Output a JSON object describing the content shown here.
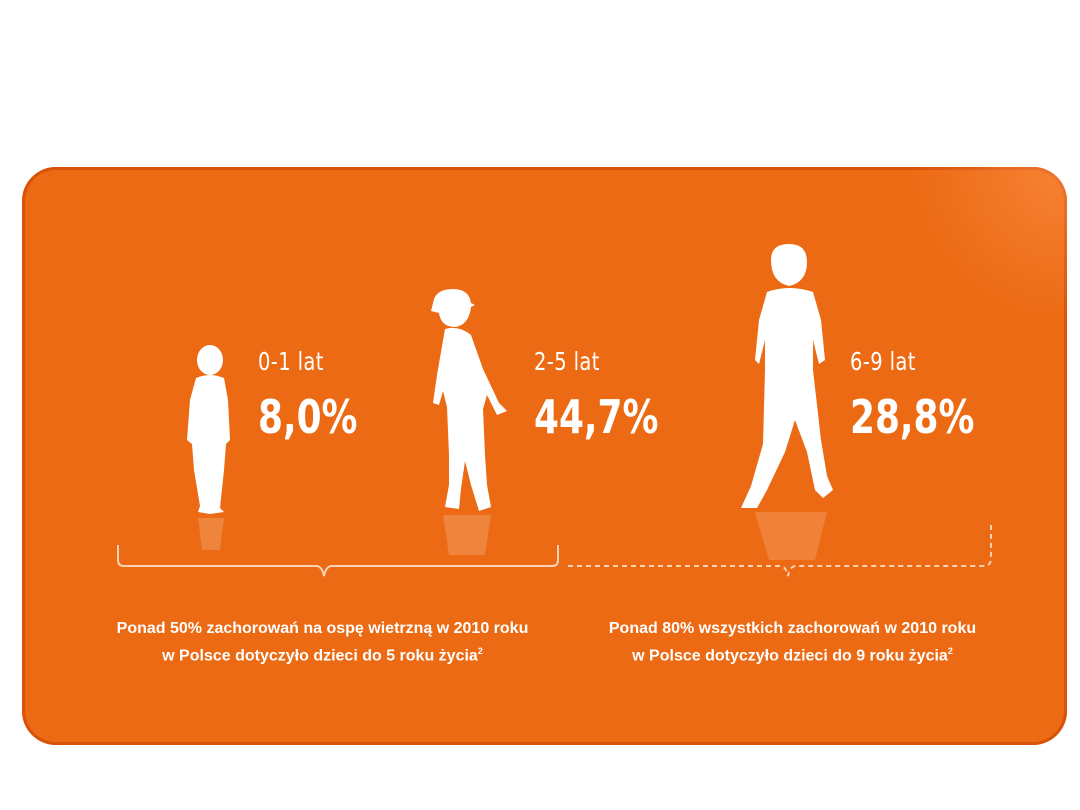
{
  "groups": [
    {
      "age": "0-1 lat",
      "percent": "8,0%"
    },
    {
      "age": "2-5 lat",
      "percent": "44,7%"
    },
    {
      "age": "6-9 lat",
      "percent": "28,8%"
    }
  ],
  "captions": {
    "left": {
      "line1": "Ponad 50% zachorowań na ospę wietrzną w 2010 roku",
      "line2": "w Polsce dotyczyło dzieci do 5 roku życia",
      "ref": "2"
    },
    "right": {
      "line1": "Ponad 80% wszystkich zachorowań w 2010 roku",
      "line2": "w Polsce dotyczyło dzieci do 9 roku życia",
      "ref": "2"
    }
  },
  "colors": {
    "panel": "#ec6a13",
    "text": "#ffffff"
  },
  "icons": [
    "toddler-silhouette-icon",
    "child-cap-silhouette-icon",
    "boy-silhouette-icon"
  ]
}
